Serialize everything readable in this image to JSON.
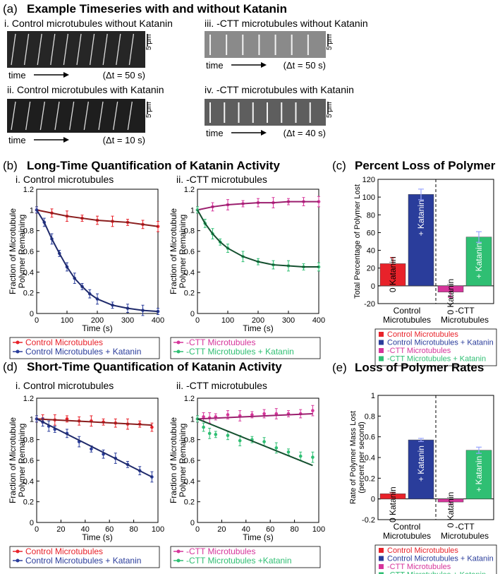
{
  "panel_a": {
    "label": "(a)",
    "title": "Example Timeseries with and without Katanin",
    "rows": [
      {
        "caption": "i. Control microtubules without Katanin",
        "scale": "5 μm",
        "time_label": "time",
        "dt": "(Δt = 50 s)"
      },
      {
        "caption": "iii. -CTT microtubules without Katanin",
        "scale": "5 μm",
        "time_label": "time",
        "dt": "(Δt = 50 s)"
      },
      {
        "caption": "ii. Control microtubules with Katanin",
        "scale": "5 μm",
        "time_label": "time",
        "dt": "(Δt = 10 s)"
      },
      {
        "caption": "iv. -CTT microtubules with Katanin",
        "scale": "5 μm",
        "time_label": "time",
        "dt": "(Δt = 40 s)"
      }
    ]
  },
  "panel_b": {
    "label": "(b)",
    "title": "Long-Time Quantification of Katanin Activity",
    "sub_i": "i. Control microtubules",
    "sub_ii": "ii. -CTT microtubules"
  },
  "panel_c": {
    "label": "(c)",
    "title": "Percent Loss of Polymer"
  },
  "panel_d": {
    "label": "(d)",
    "title": "Short-Time Quantification of Katanin Activity",
    "sub_i": "i. Control microtubules",
    "sub_ii": "ii. -CTT microtubules"
  },
  "panel_e": {
    "label": "(e)",
    "title": "Loss of Polymer Rates"
  },
  "colors": {
    "red": "#e8222a",
    "blue": "#2a3d9b",
    "magenta": "#d6359b",
    "green": "#2fbf73",
    "darkred": "#8a1d1d",
    "darkblue": "#1f2a6b",
    "darkgreen": "#14502f"
  },
  "chart_data": [
    {
      "id": "b-i",
      "type": "line",
      "xlabel": "Time (s)",
      "ylabel": "Fraction of Microtubule Polymer Remaining",
      "xlim": [
        0,
        400
      ],
      "ylim": [
        0,
        1.2
      ],
      "xticks": [
        0,
        100,
        200,
        300,
        400
      ],
      "yticks": [
        0,
        0.2,
        0.4,
        0.6,
        0.8,
        1,
        1.2
      ],
      "series": [
        {
          "name": "Control Microtubules",
          "color": "#e8222a",
          "fit_color": "#8a1d1d",
          "x": [
            0,
            50,
            100,
            150,
            200,
            250,
            300,
            350,
            400
          ],
          "y": [
            1.0,
            0.97,
            0.94,
            0.92,
            0.9,
            0.89,
            0.88,
            0.86,
            0.84
          ]
        },
        {
          "name": "Control Microtubules + Katanin",
          "color": "#2a3d9b",
          "fit_color": "#1f2a6b",
          "x": [
            0,
            25,
            50,
            75,
            100,
            125,
            150,
            175,
            200,
            250,
            300,
            350,
            400
          ],
          "y": [
            1.0,
            0.88,
            0.72,
            0.58,
            0.45,
            0.34,
            0.26,
            0.19,
            0.14,
            0.08,
            0.05,
            0.03,
            0.02
          ]
        }
      ],
      "legend_position": "below"
    },
    {
      "id": "b-ii",
      "type": "line",
      "xlabel": "Time (s)",
      "ylabel": "Fraction of Microtubule Polymer Remaining",
      "xlim": [
        0,
        400
      ],
      "ylim": [
        0,
        1.2
      ],
      "xticks": [
        0,
        100,
        200,
        300,
        400
      ],
      "yticks": [
        0,
        0.2,
        0.4,
        0.6,
        0.8,
        1,
        1.2
      ],
      "series": [
        {
          "name": "-CTT Microtubules",
          "color": "#d6359b",
          "fit_color": "#9b1f6e",
          "x": [
            0,
            50,
            100,
            150,
            200,
            250,
            300,
            350,
            400
          ],
          "y": [
            1.0,
            1.03,
            1.05,
            1.06,
            1.07,
            1.07,
            1.08,
            1.08,
            1.08
          ]
        },
        {
          "name": "-CTT Microtubules + Katanin",
          "color": "#2fbf73",
          "fit_color": "#14502f",
          "x": [
            0,
            25,
            50,
            75,
            100,
            150,
            200,
            250,
            300,
            350,
            400
          ],
          "y": [
            1.0,
            0.87,
            0.77,
            0.69,
            0.63,
            0.55,
            0.5,
            0.47,
            0.46,
            0.45,
            0.45
          ]
        }
      ],
      "legend_position": "below"
    },
    {
      "id": "c",
      "type": "bar",
      "ylabel": "Total Percentage of Polymer Lost",
      "ylim": [
        -20,
        120
      ],
      "yticks": [
        -20,
        0,
        20,
        40,
        60,
        80,
        100,
        120
      ],
      "groups": [
        "Control Microtubules",
        "-CTT Microtubules"
      ],
      "bars": [
        {
          "group": 0,
          "label": "0 Katanin",
          "value": 25,
          "err": 7,
          "color": "#e8222a"
        },
        {
          "group": 0,
          "label": "+ Katanin",
          "value": 103,
          "err": 6,
          "color": "#2a3d9b"
        },
        {
          "group": 1,
          "label": "0 Katanin",
          "value": -7,
          "err": 6,
          "color": "#d6359b"
        },
        {
          "group": 1,
          "label": "+ Katanin",
          "value": 55,
          "err": 6,
          "color": "#2fbf73"
        }
      ],
      "legend": [
        "Control Microtubules",
        "Control Microtubules + Katanin",
        "-CTT Microtubules",
        "-CTT Microtubules + Katanin"
      ]
    },
    {
      "id": "d-i",
      "type": "line",
      "xlabel": "Time (s)",
      "ylabel": "Fraction of Microtubule Polymer Remaining",
      "xlim": [
        0,
        100
      ],
      "ylim": [
        0,
        1.2
      ],
      "xticks": [
        0,
        20,
        40,
        60,
        80,
        100
      ],
      "yticks": [
        0,
        0.2,
        0.4,
        0.6,
        0.8,
        1,
        1.2
      ],
      "series": [
        {
          "name": "Control Microtubules",
          "color": "#e8222a",
          "fit_color": "#8a1d1d",
          "x": [
            0,
            5,
            15,
            25,
            35,
            45,
            55,
            65,
            75,
            85,
            95
          ],
          "y": [
            1.0,
            1.0,
            0.99,
            1.0,
            0.98,
            0.98,
            0.97,
            0.96,
            0.95,
            0.95,
            0.92
          ],
          "fit": [
            [
              0,
              1.0
            ],
            [
              95,
              0.94
            ]
          ]
        },
        {
          "name": "Control Microtubules + Katanin",
          "color": "#2a3d9b",
          "fit_color": "#1f2a6b",
          "x": [
            0,
            5,
            10,
            15,
            25,
            35,
            45,
            55,
            65,
            75,
            85,
            95
          ],
          "y": [
            1.0,
            0.97,
            0.93,
            0.9,
            0.86,
            0.78,
            0.71,
            0.66,
            0.62,
            0.56,
            0.5,
            0.44
          ],
          "fit": [
            [
              0,
              1.0
            ],
            [
              95,
              0.44
            ]
          ]
        }
      ],
      "legend_position": "below"
    },
    {
      "id": "d-ii",
      "type": "line",
      "xlabel": "Time (s)",
      "ylabel": "Fraction of Microtubule Polymer Remaining",
      "xlim": [
        0,
        100
      ],
      "ylim": [
        0,
        1.2
      ],
      "xticks": [
        0,
        20,
        40,
        60,
        80,
        100
      ],
      "yticks": [
        0,
        0.2,
        0.4,
        0.6,
        0.8,
        1,
        1.2
      ],
      "series": [
        {
          "name": "-CTT Microtubules",
          "color": "#d6359b",
          "fit_color": "#9b1f6e",
          "x": [
            0,
            5,
            10,
            15,
            25,
            35,
            45,
            55,
            65,
            75,
            85,
            95
          ],
          "y": [
            1.0,
            1.02,
            1.01,
            1.02,
            1.04,
            1.03,
            1.04,
            1.05,
            1.05,
            1.05,
            1.05,
            1.08
          ],
          "fit": [
            [
              0,
              1.0
            ],
            [
              95,
              1.05
            ]
          ]
        },
        {
          "name": "-CTT Microtubules +Katanin",
          "color": "#2fbf73",
          "fit_color": "#14502f",
          "x": [
            0,
            5,
            10,
            15,
            25,
            35,
            45,
            55,
            65,
            75,
            85,
            95
          ],
          "y": [
            1.0,
            0.92,
            0.86,
            0.85,
            0.84,
            0.79,
            0.8,
            0.78,
            0.72,
            0.68,
            0.64,
            0.63
          ],
          "fit": [
            [
              0,
              1.0
            ],
            [
              95,
              0.55
            ]
          ]
        }
      ],
      "legend_position": "below"
    },
    {
      "id": "e",
      "type": "bar",
      "ylabel": "Rate of Polymer Mass Lost (percent per second)",
      "ylim": [
        -0.2,
        1
      ],
      "yticks": [
        -0.2,
        0,
        0.2,
        0.4,
        0.6,
        0.8,
        1
      ],
      "groups": [
        "Control Microtubules",
        "-CTT Microtubules"
      ],
      "bars": [
        {
          "group": 0,
          "label": "0 Katanin",
          "value": 0.05,
          "err": 0.01,
          "color": "#e8222a"
        },
        {
          "group": 0,
          "label": "+ Katanin",
          "value": 0.57,
          "err": 0.015,
          "color": "#2a3d9b"
        },
        {
          "group": 1,
          "label": "0 Katanin",
          "value": -0.03,
          "err": 0.02,
          "color": "#d6359b"
        },
        {
          "group": 1,
          "label": "+ Katanin",
          "value": 0.47,
          "err": 0.03,
          "color": "#2fbf73"
        }
      ],
      "legend": [
        "Control Microtubules",
        "Control Microtubules + Katanin",
        "-CTT Microtubules",
        "-CTT Microtubules + Katanin"
      ]
    }
  ]
}
